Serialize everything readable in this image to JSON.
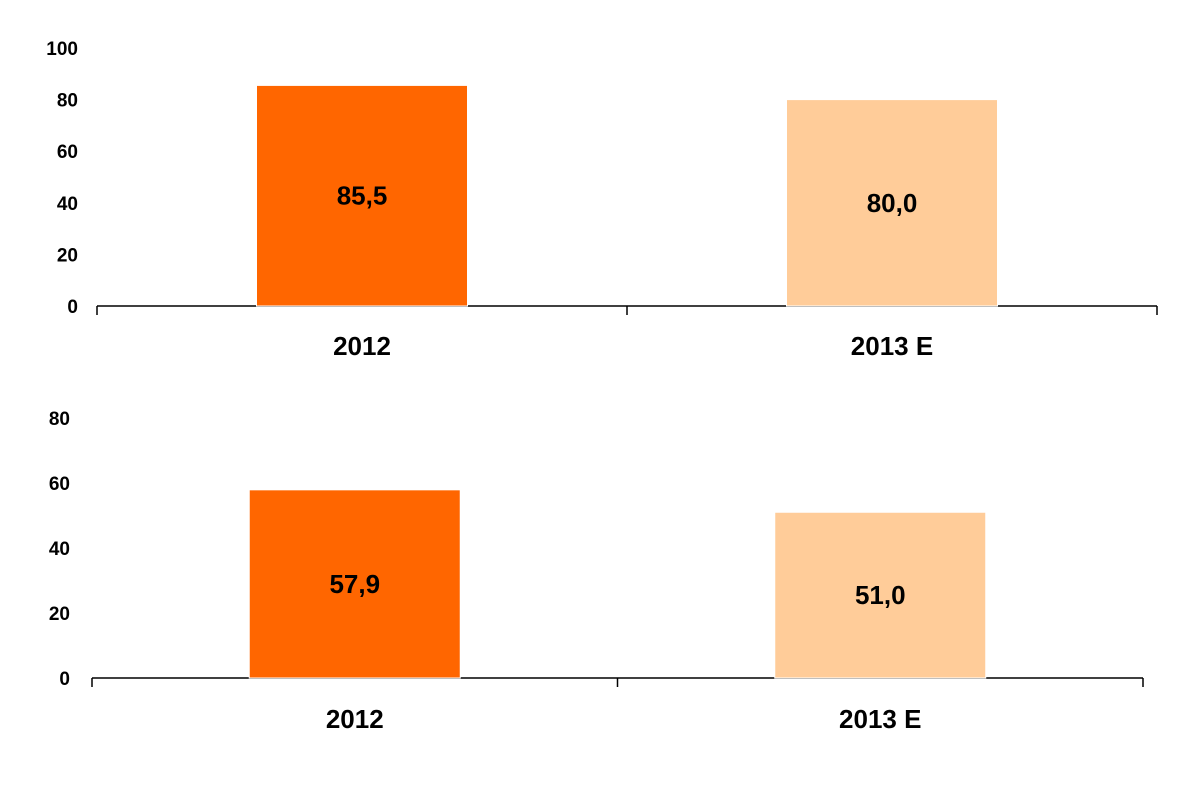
{
  "chart_data": [
    {
      "type": "bar",
      "categories": [
        "2012",
        "2013 E"
      ],
      "values": [
        85.5,
        80.0
      ],
      "value_labels": [
        "85,5",
        "80,0"
      ],
      "ylim": [
        0,
        100
      ],
      "yticks": [
        "0",
        "20",
        "40",
        "60",
        "80",
        "100"
      ],
      "ytick_values": [
        0,
        20,
        40,
        60,
        80,
        100
      ],
      "colors": [
        "#ff6600",
        "#ffcc99"
      ],
      "title": "",
      "xlabel": "",
      "ylabel": "",
      "grid": false
    },
    {
      "type": "bar",
      "categories": [
        "2012",
        "2013 E"
      ],
      "values": [
        57.9,
        51.0
      ],
      "value_labels": [
        "57,9",
        "51,0"
      ],
      "ylim": [
        0,
        80
      ],
      "yticks": [
        "0",
        "20",
        "40",
        "60",
        "80"
      ],
      "ytick_values": [
        0,
        20,
        40,
        60,
        80
      ],
      "colors": [
        "#ff6600",
        "#ffcc99"
      ],
      "title": "",
      "xlabel": "",
      "ylabel": "",
      "grid": false
    }
  ]
}
